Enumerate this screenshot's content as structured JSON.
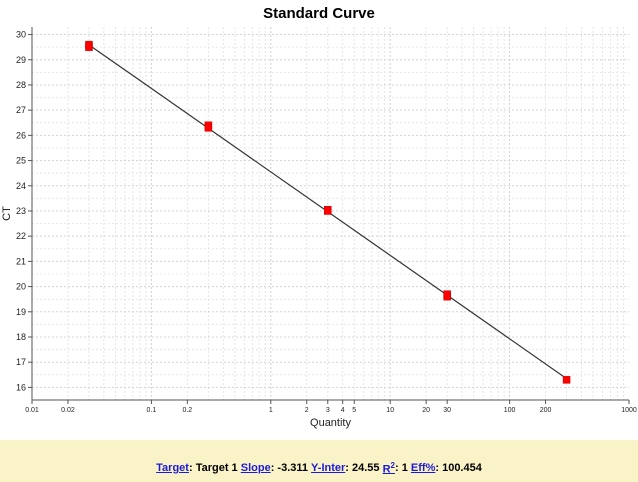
{
  "chart_data": {
    "type": "scatter",
    "title": "Standard Curve",
    "xlabel": "Quantity",
    "ylabel": "CT",
    "xscale": "log",
    "xlim": [
      0.01,
      1000
    ],
    "ylim": [
      15.5,
      30.3
    ],
    "x_ticks": [
      {
        "v": 0.01,
        "label": "0.01"
      },
      {
        "v": 0.02,
        "label": "0.02"
      },
      {
        "v": 0.1,
        "label": "0.1"
      },
      {
        "v": 0.2,
        "label": "0.2"
      },
      {
        "v": 1,
        "label": "1"
      },
      {
        "v": 2,
        "label": "2"
      },
      {
        "v": 3,
        "label": "3"
      },
      {
        "v": 4,
        "label": "4"
      },
      {
        "v": 5,
        "label": "5"
      },
      {
        "v": 10,
        "label": "10"
      },
      {
        "v": 20,
        "label": "20"
      },
      {
        "v": 30,
        "label": "30"
      },
      {
        "v": 100,
        "label": "100"
      },
      {
        "v": 200,
        "label": "200"
      },
      {
        "v": 1000,
        "label": "1000"
      }
    ],
    "y_ticks": [
      16,
      17,
      18,
      19,
      20,
      21,
      22,
      23,
      24,
      25,
      26,
      27,
      28,
      29,
      30
    ],
    "grid": true,
    "series": [
      {
        "points": [
          {
            "x": 0.03,
            "y": 29.6
          },
          {
            "x": 0.03,
            "y": 29.5
          },
          {
            "x": 0.3,
            "y": 26.4
          },
          {
            "x": 0.3,
            "y": 26.3
          },
          {
            "x": 3,
            "y": 23.05
          },
          {
            "x": 3,
            "y": 23.0
          },
          {
            "x": 30,
            "y": 19.7
          },
          {
            "x": 30,
            "y": 19.6
          },
          {
            "x": 300,
            "y": 16.3
          }
        ],
        "color": "#ff0000"
      }
    ],
    "fit_line": {
      "slope": -3.311,
      "intercept": 24.55,
      "x_from": 0.03,
      "x_to": 300,
      "color": "#333333"
    }
  },
  "footer": {
    "target_link": "Target",
    "target_value": ": Target 1 ",
    "slope_link": "Slope",
    "slope_value": ": -3.311 ",
    "yinter_link": "Y-Inter",
    "yinter_value": ": 24.55 ",
    "r2_link": "R",
    "r2_sup": "2",
    "r2_value": ": 1 ",
    "eff_link": "Eff%",
    "eff_value": ": 100.454"
  }
}
